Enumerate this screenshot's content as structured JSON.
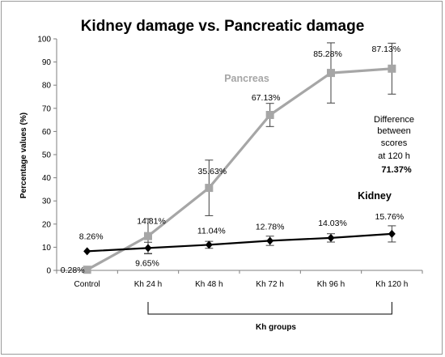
{
  "chart_data": {
    "type": "line",
    "title": "Kidney damage vs. Pancreatic damage",
    "ylabel": "Percentage values (%)",
    "xlabel": "",
    "ylim": [
      0,
      100
    ],
    "yticks": [
      0,
      10,
      20,
      30,
      40,
      50,
      60,
      70,
      80,
      90,
      100
    ],
    "categories": [
      "Control",
      "Kh 24 h",
      "Kh 48 h",
      "Kh 72 h",
      "Kh 96 h",
      "Kh 120 h"
    ],
    "grid": false,
    "series": [
      {
        "name": "Pancreas",
        "color": "#a6a6a6",
        "marker": "square",
        "values": [
          0.28,
          14.81,
          35.63,
          67.13,
          85.28,
          87.13
        ],
        "error": [
          null,
          7.5,
          12.0,
          5.0,
          13.0,
          11.0
        ],
        "labels": [
          "0.28%",
          "14.81%",
          "35.63%",
          "67.13%",
          "85.28%",
          "87.13%"
        ]
      },
      {
        "name": "Kidney",
        "color": "#000000",
        "marker": "diamond",
        "values": [
          8.26,
          9.65,
          11.04,
          12.78,
          14.03,
          15.76
        ],
        "error": [
          null,
          2.5,
          1.5,
          2.0,
          1.8,
          3.5
        ],
        "labels": [
          "8.26%",
          "9.65%",
          "11.04%",
          "12.78%",
          "14.03%",
          "15.76%"
        ]
      }
    ],
    "annotation": {
      "lines": [
        "Difference",
        "between",
        "scores",
        "at 120 h"
      ],
      "value": "71.37%"
    },
    "group_bracket": {
      "label": "Kh groups",
      "from_category": 1,
      "to_category": 5
    }
  }
}
